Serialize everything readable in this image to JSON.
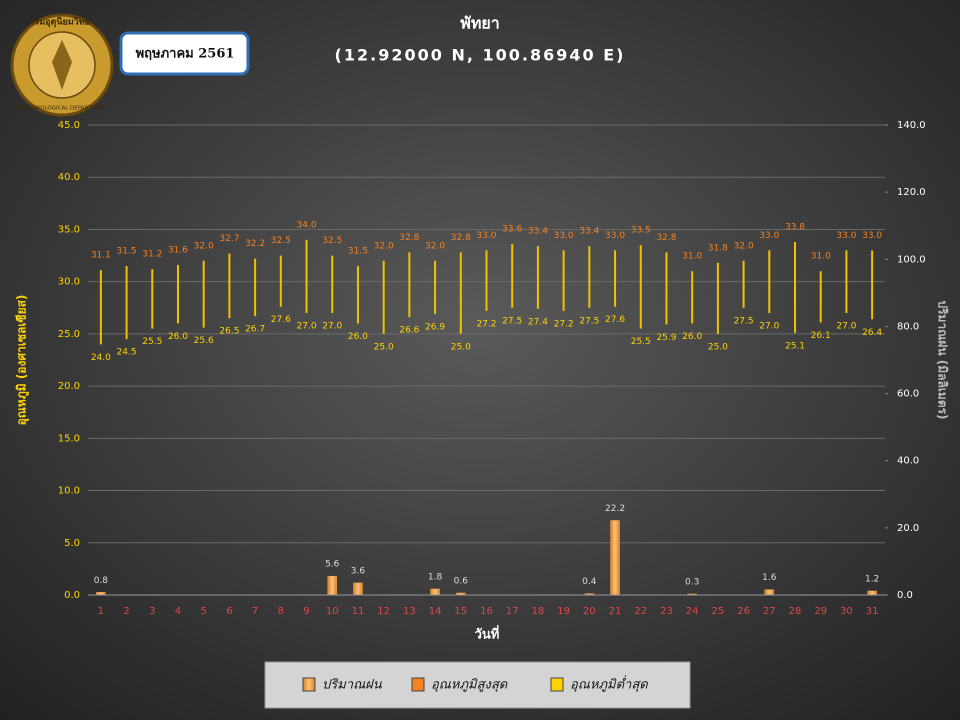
{
  "logo": {
    "title": "กรมอุตุนิยมวิทยา",
    "subtitle": "METEOROLOGICAL DEPARTMENT"
  },
  "chart_data": {
    "type": "rain-temperature",
    "title": "พัทยา",
    "subtitle": "(12.92000 N, 100.86940 E)",
    "period": "พฤษภาคม 2561",
    "x_label": "วันที่",
    "y_label": "อุณหภูมิ (องศาเซลเซียส)",
    "y2_label": "ปริมาณฝน (มิลลิเมตร)",
    "categories": [
      "1",
      "2",
      "3",
      "4",
      "5",
      "6",
      "7",
      "8",
      "9",
      "10",
      "11",
      "12",
      "13",
      "14",
      "15",
      "16",
      "17",
      "18",
      "19",
      "20",
      "21",
      "22",
      "23",
      "24",
      "25",
      "26",
      "27",
      "28",
      "29",
      "30",
      "31"
    ],
    "series": [
      {
        "name": "ปริมาณฝน",
        "color": "#f2a046",
        "axis": "y2",
        "values": [
          0.8,
          null,
          null,
          null,
          null,
          null,
          null,
          null,
          null,
          5.6,
          3.6,
          null,
          null,
          1.8,
          0.6,
          null,
          null,
          null,
          null,
          0.4,
          22.2,
          null,
          null,
          0.3,
          null,
          null,
          1.6,
          null,
          null,
          null,
          1.2
        ]
      },
      {
        "name": "อุณหภูมิสูงสุด",
        "color": "#f58220",
        "values": [
          31.1,
          31.5,
          31.2,
          31.6,
          32,
          32.7,
          32.2,
          32.5,
          34,
          32.5,
          31.5,
          32,
          32.8,
          32,
          32.8,
          33,
          33.6,
          33.4,
          33,
          33.4,
          33,
          33.5,
          32.8,
          31,
          31.8,
          32,
          33,
          33.8,
          31,
          33,
          33
        ],
        "value_labels": [
          "31.1",
          "31.5",
          "31.2",
          "31.6",
          "32.0",
          "32.7",
          "32.2",
          "32.5",
          "34.0",
          "32.5",
          "31.5",
          "32.0",
          "32.8",
          "32.0",
          "32.8",
          "33.0",
          "33.6",
          "33.4",
          "33.0",
          "33.4",
          "33.0",
          "33.5",
          "32.8",
          "31.0",
          "31.8",
          "32.0",
          "33.0",
          "33.8",
          "31.0",
          "33.0",
          "33.0"
        ]
      },
      {
        "name": "อุณหภูมิต่ำสุด",
        "color": "#ffd200",
        "values": [
          24,
          24.5,
          25.5,
          26,
          25.6,
          26.5,
          26.7,
          27.6,
          27,
          27,
          26,
          25,
          26.6,
          26.9,
          25,
          27.2,
          27.5,
          27.4,
          27.2,
          27.5,
          27.6,
          25.5,
          25.9,
          26,
          25,
          27.5,
          27,
          25.1,
          26.1,
          27,
          26.4
        ],
        "value_labels": [
          "24.0",
          "24.5",
          "25.5",
          "26.0",
          "25.6",
          "26.5",
          "26.7",
          "27.6",
          "27.0",
          "27.0",
          "26.0",
          "25.0",
          "26.6",
          "26.9",
          "25.0",
          "27.2",
          "27.5",
          "27.4",
          "27.2",
          "27.5",
          "27.6",
          "25.5",
          "25.9",
          "26.0",
          "25.0",
          "27.5",
          "27.0",
          "25.1",
          "26.1",
          "27.0",
          "26.4"
        ]
      }
    ],
    "ylim": [
      0,
      45
    ],
    "yticks": [
      {
        "value": 0,
        "label": "0.0"
      },
      {
        "value": 5,
        "label": "5.0"
      },
      {
        "value": 10,
        "label": "10.0"
      },
      {
        "value": 15,
        "label": "15.0"
      },
      {
        "value": 20,
        "label": "20.0"
      },
      {
        "value": 25,
        "label": "25.0"
      },
      {
        "value": 30,
        "label": "30.0"
      },
      {
        "value": 35,
        "label": "35.0"
      },
      {
        "value": 40,
        "label": "40.0"
      },
      {
        "value": 45,
        "label": "45.0"
      }
    ],
    "y2lim": [
      0,
      140
    ],
    "y2ticks": [
      {
        "value": 0,
        "label": "0.0"
      },
      {
        "value": 20,
        "label": "20.0"
      },
      {
        "value": 40,
        "label": "40.0"
      },
      {
        "value": 60,
        "label": "60.0"
      },
      {
        "value": 80,
        "label": "80.0"
      },
      {
        "value": 100,
        "label": "100.0"
      },
      {
        "value": 120,
        "label": "120.0"
      },
      {
        "value": 140,
        "label": "140.0"
      }
    ],
    "grid": true,
    "legend": "bottom"
  }
}
